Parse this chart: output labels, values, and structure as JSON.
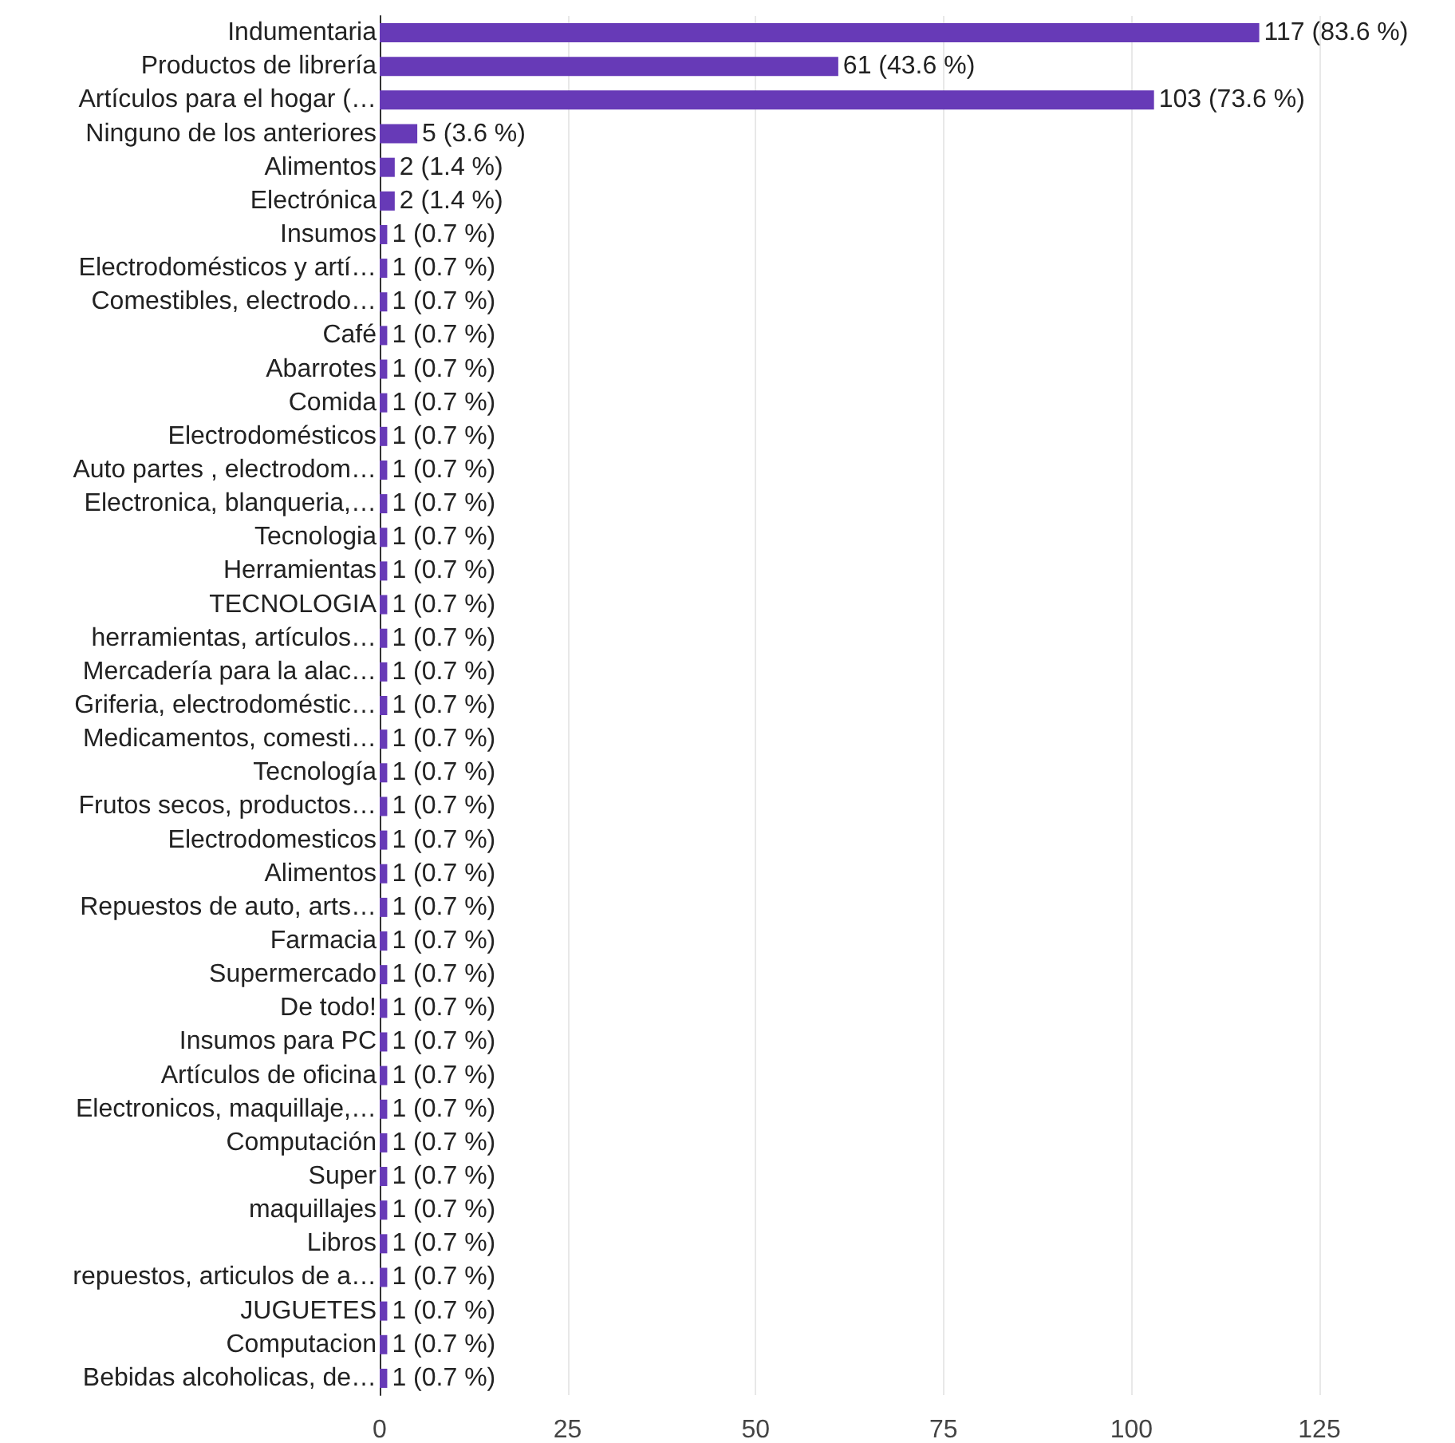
{
  "chart_data": {
    "type": "bar",
    "orientation": "horizontal",
    "categories": [
      "Indumentaria",
      "Productos de librería",
      "Artículos para el hogar (…",
      "Ninguno de los anteriores",
      "Alimentos",
      "Electrónica",
      "Insumos",
      "Electrodomésticos y artí…",
      "Comestibles, electrodo…",
      "Café",
      "Abarrotes",
      "Comida",
      "Electrodomésticos",
      "Auto partes , electrodom…",
      "Electronica, blanqueria,…",
      "Tecnologia",
      "Herramientas",
      "TECNOLOGIA",
      "herramientas, artículos…",
      "Mercadería para la alac…",
      "Griferia, electrodoméstic…",
      "Medicamentos, comesti…",
      "Tecnología",
      "Frutos secos, productos…",
      "Electrodomesticos",
      "Alimentos",
      "Repuestos de auto, arts…",
      "Farmacia",
      "Supermercado",
      "De todo!",
      "Insumos para PC",
      "Artículos de oficina",
      "Electronicos, maquillaje,…",
      "Computación",
      "Super",
      "maquillajes",
      "Libros",
      "repuestos, articulos de a…",
      "JUGUETES",
      "Computacion",
      "Bebidas alcoholicas, de…"
    ],
    "values": [
      117,
      61,
      103,
      5,
      2,
      2,
      1,
      1,
      1,
      1,
      1,
      1,
      1,
      1,
      1,
      1,
      1,
      1,
      1,
      1,
      1,
      1,
      1,
      1,
      1,
      1,
      1,
      1,
      1,
      1,
      1,
      1,
      1,
      1,
      1,
      1,
      1,
      1,
      1,
      1,
      1
    ],
    "value_labels": [
      "117 (83.6 %)",
      "61 (43.6 %)",
      "103 (73.6 %)",
      "5 (3.6 %)",
      "2 (1.4 %)",
      "2 (1.4 %)",
      "1 (0.7 %)",
      "1 (0.7 %)",
      "1 (0.7 %)",
      "1 (0.7 %)",
      "1 (0.7 %)",
      "1 (0.7 %)",
      "1 (0.7 %)",
      "1 (0.7 %)",
      "1 (0.7 %)",
      "1 (0.7 %)",
      "1 (0.7 %)",
      "1 (0.7 %)",
      "1 (0.7 %)",
      "1 (0.7 %)",
      "1 (0.7 %)",
      "1 (0.7 %)",
      "1 (0.7 %)",
      "1 (0.7 %)",
      "1 (0.7 %)",
      "1 (0.7 %)",
      "1 (0.7 %)",
      "1 (0.7 %)",
      "1 (0.7 %)",
      "1 (0.7 %)",
      "1 (0.7 %)",
      "1 (0.7 %)",
      "1 (0.7 %)",
      "1 (0.7 %)",
      "1 (0.7 %)",
      "1 (0.7 %)",
      "1 (0.7 %)",
      "1 (0.7 %)",
      "1 (0.7 %)",
      "1 (0.7 %)",
      "1 (0.7 %)"
    ],
    "color": "#673ab7",
    "xlim": [
      0,
      125
    ],
    "xticks": [
      0,
      25,
      50,
      75,
      100,
      125
    ],
    "grid": "x"
  }
}
